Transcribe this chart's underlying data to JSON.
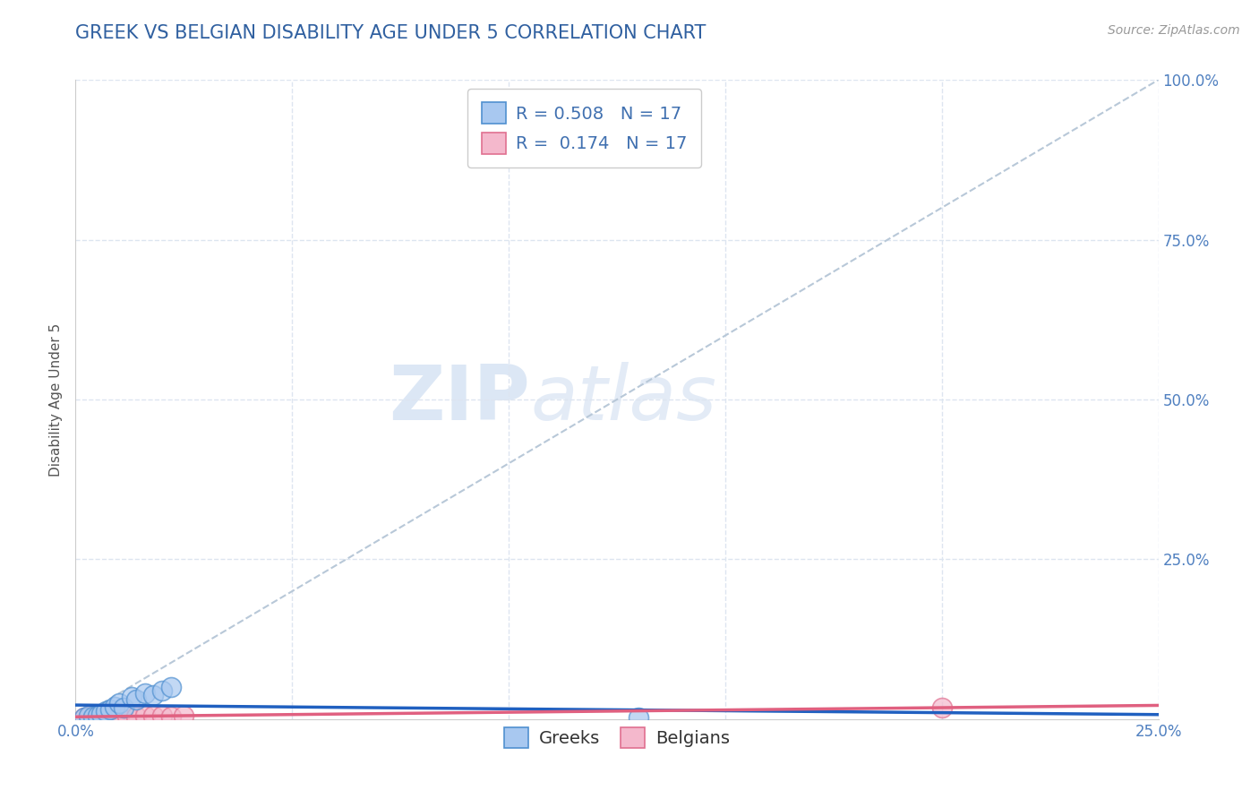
{
  "title": "GREEK VS BELGIAN DISABILITY AGE UNDER 5 CORRELATION CHART",
  "source_text": "Source: ZipAtlas.com",
  "ylabel": "Disability Age Under 5",
  "xlim": [
    0.0,
    0.25
  ],
  "ylim": [
    0.0,
    1.0
  ],
  "xticks": [
    0.0,
    0.05,
    0.1,
    0.15,
    0.2,
    0.25
  ],
  "yticks": [
    0.0,
    0.25,
    0.5,
    0.75,
    1.0
  ],
  "xticklabels": [
    "0.0%",
    "",
    "",
    "",
    "",
    "25.0%"
  ],
  "yticklabels": [
    "",
    "25.0%",
    "50.0%",
    "75.0%",
    "100.0%"
  ],
  "greeks_x": [
    0.002,
    0.003,
    0.004,
    0.005,
    0.006,
    0.007,
    0.008,
    0.009,
    0.01,
    0.011,
    0.013,
    0.014,
    0.016,
    0.018,
    0.02,
    0.022,
    0.13
  ],
  "greeks_y": [
    0.003,
    0.005,
    0.004,
    0.006,
    0.008,
    0.012,
    0.015,
    0.02,
    0.025,
    0.018,
    0.035,
    0.03,
    0.04,
    0.038,
    0.045,
    0.05,
    0.002
  ],
  "belgians_x": [
    0.002,
    0.003,
    0.004,
    0.005,
    0.006,
    0.007,
    0.008,
    0.009,
    0.01,
    0.012,
    0.014,
    0.016,
    0.018,
    0.02,
    0.022,
    0.025,
    0.2
  ],
  "belgians_y": [
    0.003,
    0.004,
    0.003,
    0.005,
    0.004,
    0.005,
    0.004,
    0.005,
    0.004,
    0.005,
    0.004,
    0.005,
    0.005,
    0.005,
    0.004,
    0.005,
    0.018
  ],
  "greek_color": "#a8c8f0",
  "belgian_color": "#f4b8cc",
  "greek_edge_color": "#5090d0",
  "belgian_edge_color": "#e07090",
  "greek_line_color": "#2060c0",
  "belgian_line_color": "#e06080",
  "ref_line_color": "#b8c8d8",
  "grid_color": "#dde5f0",
  "background_color": "#ffffff",
  "title_color": "#3060a0",
  "tick_color": "#5080c0",
  "legend_text_color": "#4070b0",
  "R_greek": 0.508,
  "R_belgian": 0.174,
  "N_greek": 17,
  "N_belgian": 17,
  "watermark_zip": "ZIP",
  "watermark_atlas": "atlas",
  "title_fontsize": 15,
  "axis_label_fontsize": 11,
  "tick_fontsize": 12,
  "legend_fontsize": 14,
  "source_fontsize": 10
}
